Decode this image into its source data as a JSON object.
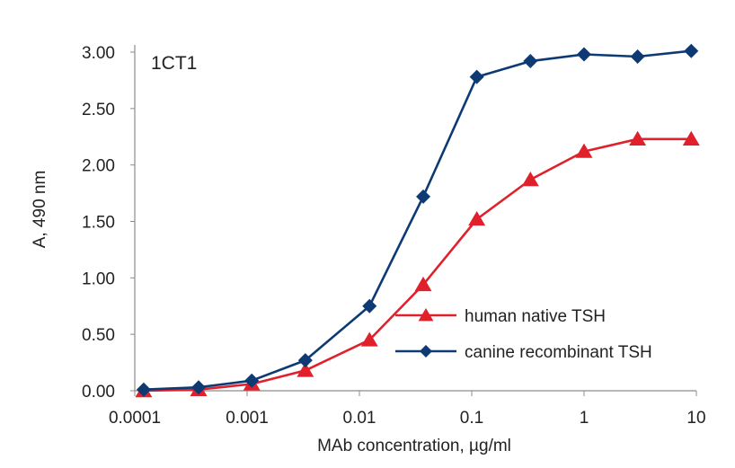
{
  "chart_data": {
    "type": "line",
    "title": "1CT1",
    "xlabel": "MAb concentration, µg/ml",
    "ylabel": "A, 490 nm",
    "x_scale": "log",
    "xlim": [
      0.0001,
      10
    ],
    "ylim": [
      0,
      3
    ],
    "x_ticks": [
      0.0001,
      0.001,
      0.01,
      0.1,
      1,
      10
    ],
    "x_tick_labels": [
      "0.0001",
      "0.001",
      "0.01",
      "0.1",
      "1",
      "10"
    ],
    "y_ticks": [
      0,
      0.5,
      1,
      1.5,
      2,
      2.5,
      3
    ],
    "y_tick_labels": [
      "0.00",
      "0.50",
      "1.00",
      "1.50",
      "2.00",
      "2.50",
      "3.00"
    ],
    "grid": false,
    "legend_position": "center-right",
    "x": [
      0.00012,
      0.00037,
      0.0011,
      0.0033,
      0.0123,
      0.037,
      0.111,
      0.333,
      1,
      3,
      9
    ],
    "series": [
      {
        "name": "human native TSH",
        "color": "#e0202a",
        "marker": "triangle",
        "values": [
          0.0,
          0.01,
          0.06,
          0.18,
          0.45,
          0.94,
          1.52,
          1.87,
          2.12,
          2.23,
          2.23
        ]
      },
      {
        "name": "canine recombinant TSH",
        "color": "#0d3a73",
        "marker": "diamond",
        "values": [
          0.01,
          0.03,
          0.09,
          0.27,
          0.75,
          1.72,
          2.78,
          2.92,
          2.98,
          2.96,
          3.01
        ]
      }
    ]
  }
}
